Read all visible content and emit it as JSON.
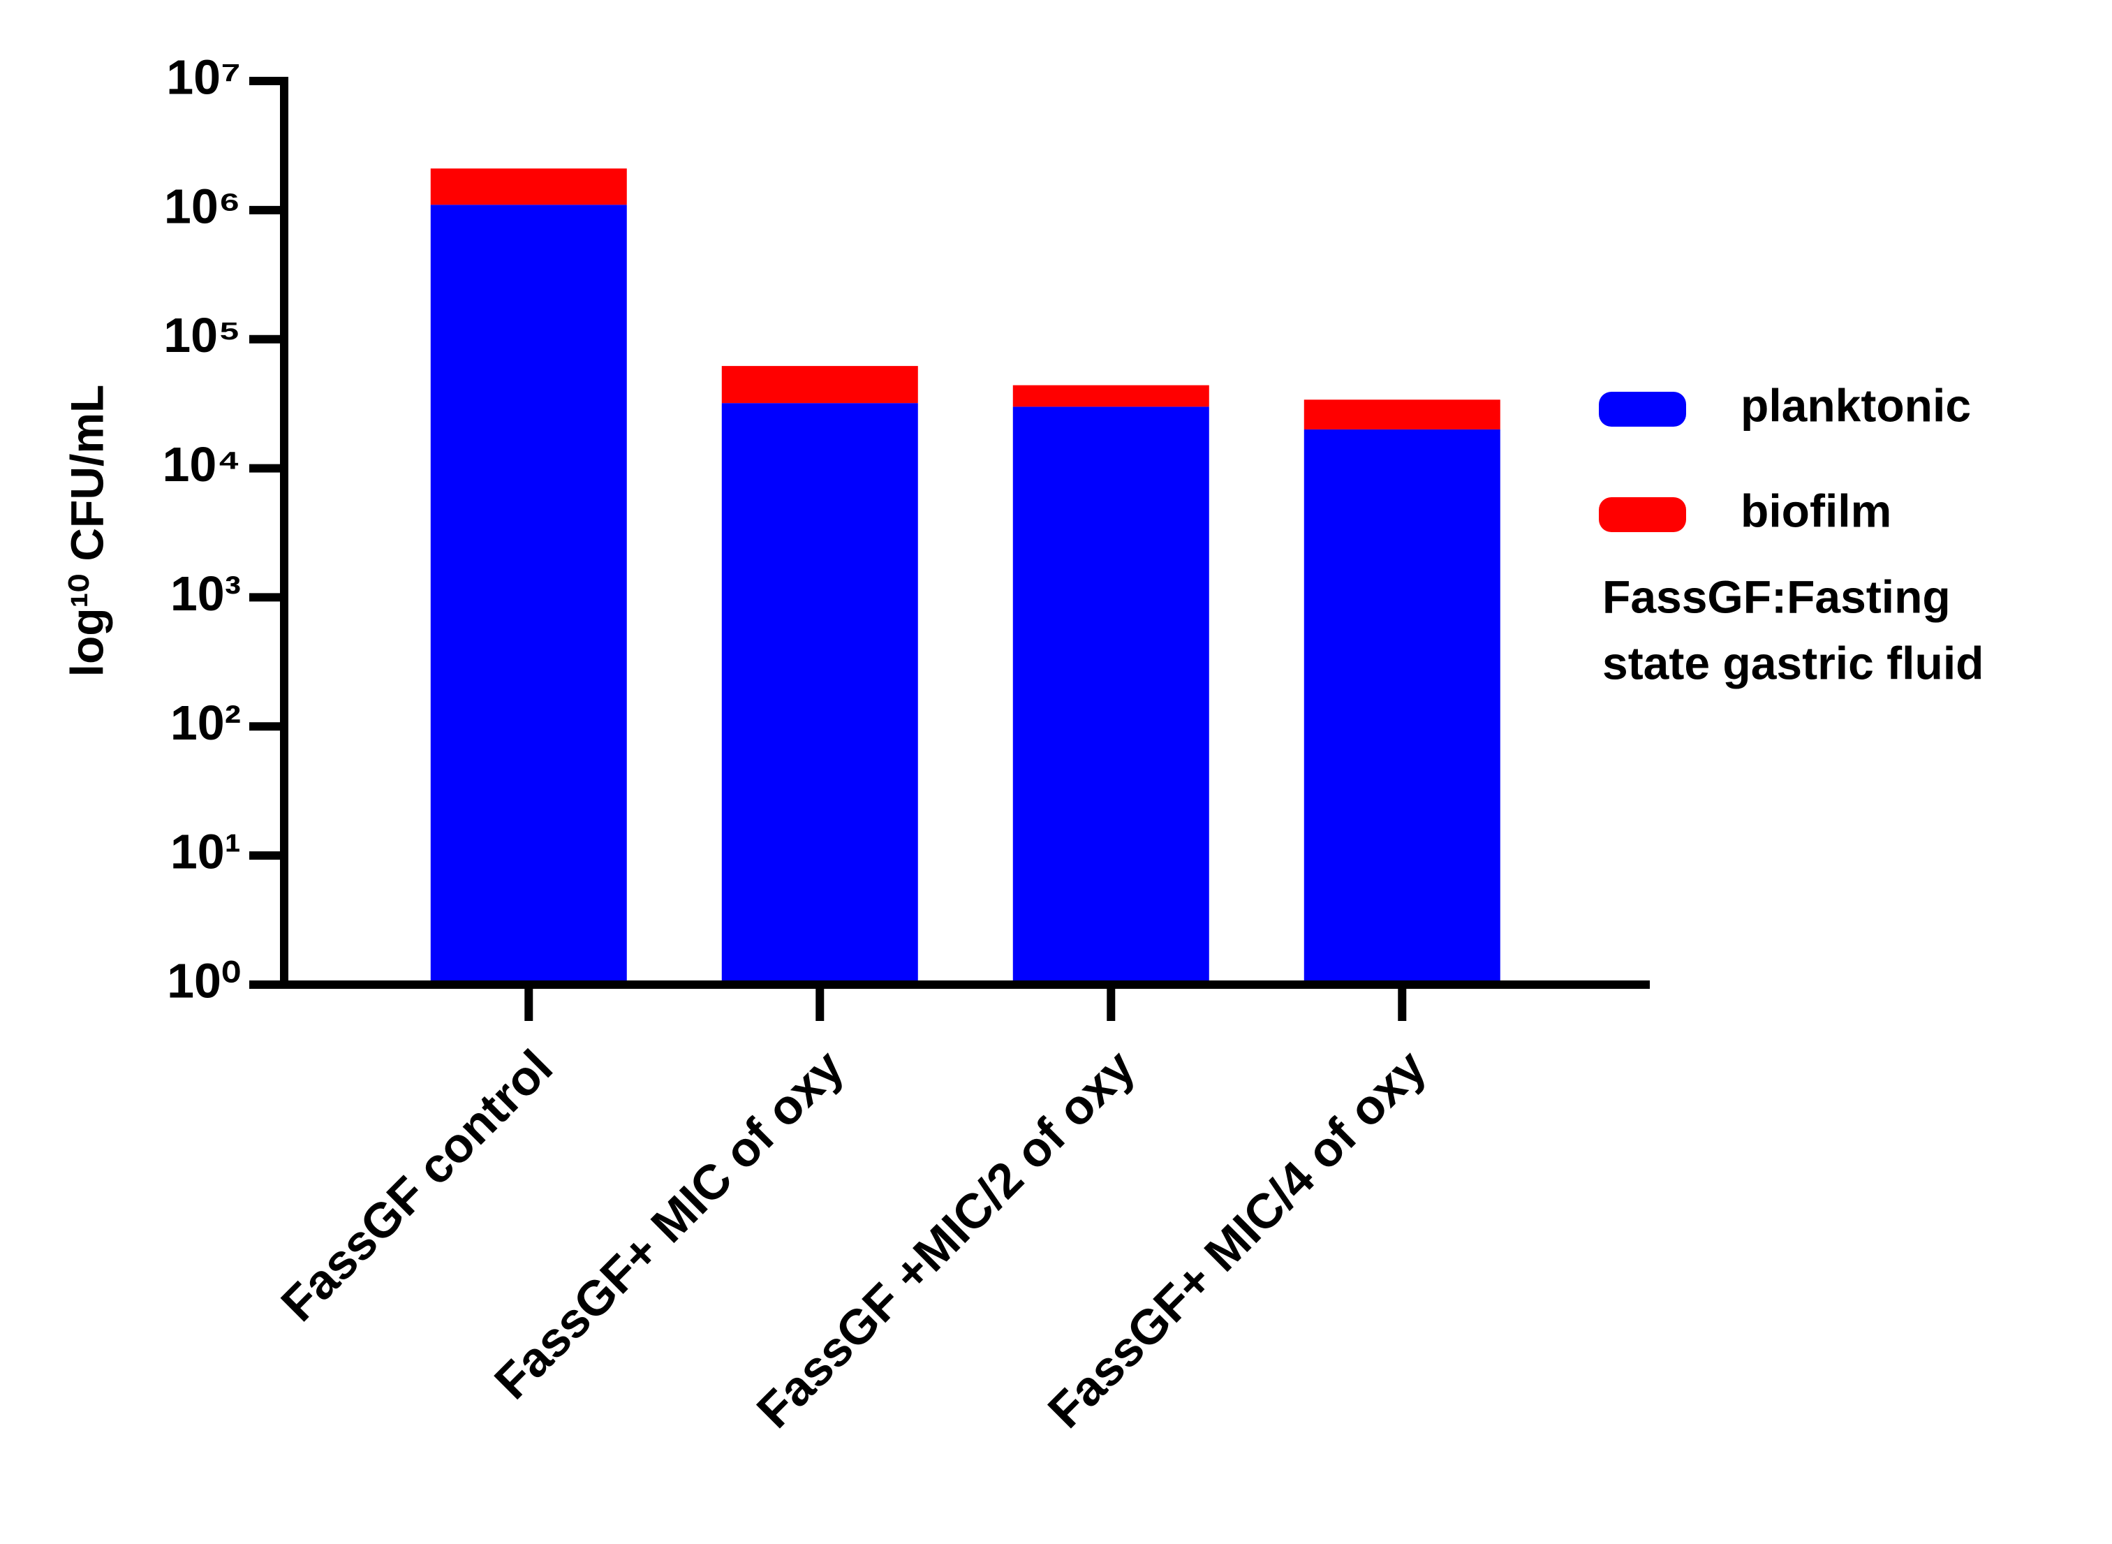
{
  "chart_data": {
    "type": "stacked_bar",
    "y_label": "log¹⁰ CFU/mL",
    "categories": [
      "FassGF control",
      "FassGF+ MIC of oxy",
      "FassGF +MIC/2 of oxy",
      "FassGF+ MIC/4 of oxy"
    ],
    "series": [
      {
        "name": "planktonic",
        "color": "#0000ff",
        "values": [
          1100000,
          32000,
          30000,
          20000
        ]
      },
      {
        "name": "biofilm",
        "color": "#ff0000",
        "values": [
          1000000,
          30000,
          14000,
          14000
        ]
      }
    ],
    "log_scale": true,
    "ylim": [
      1,
      10000000
    ],
    "yticks": [
      {
        "value": 1,
        "label": "10⁰"
      },
      {
        "value": 10,
        "label": "10¹"
      },
      {
        "value": 100,
        "label": "10²"
      },
      {
        "value": 1000,
        "label": "10³"
      },
      {
        "value": 10000,
        "label": "10⁴"
      },
      {
        "value": 100000,
        "label": "10⁵"
      },
      {
        "value": 1000000,
        "label": "10⁶"
      },
      {
        "value": 10000000,
        "label": "10⁷"
      }
    ],
    "legend": "right",
    "annotation": [
      "FassGF:Fasting",
      "state gastric fluid"
    ]
  }
}
